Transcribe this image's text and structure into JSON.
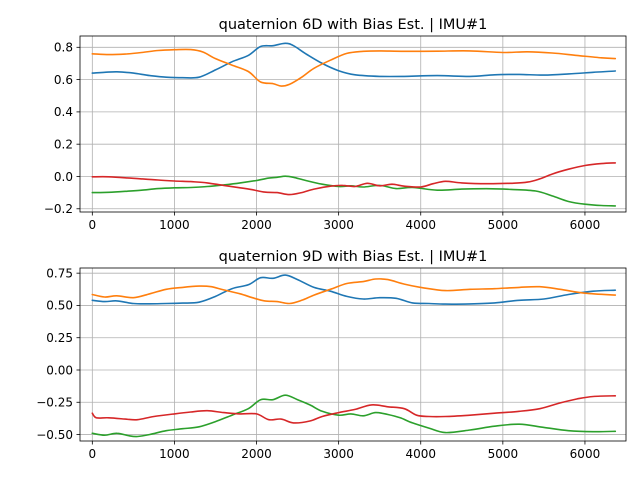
{
  "chart_data": [
    {
      "type": "line",
      "title": "quaternion 6D with Bias Est. | IMU#1",
      "xlabel": "",
      "ylabel": "",
      "xlim": [
        -150,
        6500
      ],
      "ylim": [
        -0.22,
        0.87
      ],
      "x_ticks": [
        0,
        1000,
        2000,
        3000,
        4000,
        5000,
        6000
      ],
      "x_tick_labels": [
        "0",
        "1000",
        "2000",
        "3000",
        "4000",
        "5000",
        "6000"
      ],
      "y_ticks": [
        -0.2,
        0.0,
        0.2,
        0.4,
        0.6,
        0.8
      ],
      "y_tick_labels": [
        "−0.2",
        "0.0",
        "0.2",
        "0.4",
        "0.6",
        "0.8"
      ],
      "grid": true,
      "series": [
        {
          "color": "#1f77b4",
          "x": [
            0,
            150,
            300,
            500,
            700,
            900,
            1100,
            1300,
            1500,
            1700,
            1900,
            2050,
            2200,
            2350,
            2450,
            2600,
            2800,
            3000,
            3200,
            3500,
            3800,
            4200,
            4600,
            4900,
            5200,
            5500,
            5800,
            6100,
            6370
          ],
          "y": [
            0.64,
            0.645,
            0.648,
            0.64,
            0.625,
            0.615,
            0.612,
            0.615,
            0.66,
            0.71,
            0.75,
            0.805,
            0.81,
            0.825,
            0.81,
            0.76,
            0.7,
            0.655,
            0.63,
            0.62,
            0.62,
            0.625,
            0.62,
            0.63,
            0.632,
            0.628,
            0.635,
            0.645,
            0.653
          ]
        },
        {
          "color": "#ff7f0e",
          "x": [
            0,
            200,
            400,
            600,
            800,
            1000,
            1200,
            1350,
            1500,
            1700,
            1900,
            2050,
            2200,
            2300,
            2400,
            2550,
            2700,
            2900,
            3100,
            3300,
            3500,
            3800,
            4200,
            4600,
            5000,
            5300,
            5600,
            5900,
            6200,
            6370
          ],
          "y": [
            0.76,
            0.755,
            0.758,
            0.768,
            0.78,
            0.785,
            0.786,
            0.77,
            0.73,
            0.69,
            0.65,
            0.585,
            0.575,
            0.56,
            0.57,
            0.615,
            0.67,
            0.72,
            0.762,
            0.775,
            0.778,
            0.775,
            0.776,
            0.778,
            0.768,
            0.772,
            0.765,
            0.75,
            0.735,
            0.73
          ]
        },
        {
          "color": "#2ca02c",
          "x": [
            0,
            200,
            400,
            600,
            800,
            1000,
            1200,
            1400,
            1600,
            1800,
            2000,
            2150,
            2250,
            2350,
            2450,
            2600,
            2800,
            3000,
            3150,
            3300,
            3500,
            3700,
            3900,
            4200,
            4500,
            4800,
            5100,
            5400,
            5600,
            5800,
            6000,
            6200,
            6370
          ],
          "y": [
            -0.1,
            -0.098,
            -0.092,
            -0.085,
            -0.075,
            -0.07,
            -0.068,
            -0.062,
            -0.052,
            -0.04,
            -0.025,
            -0.01,
            -0.005,
            0.002,
            -0.005,
            -0.025,
            -0.048,
            -0.062,
            -0.058,
            -0.065,
            -0.055,
            -0.075,
            -0.068,
            -0.085,
            -0.078,
            -0.076,
            -0.08,
            -0.09,
            -0.12,
            -0.155,
            -0.172,
            -0.18,
            -0.182
          ]
        },
        {
          "color": "#d62728",
          "x": [
            0,
            200,
            400,
            600,
            800,
            1000,
            1200,
            1400,
            1600,
            1800,
            1950,
            2100,
            2250,
            2400,
            2550,
            2700,
            2900,
            3050,
            3200,
            3350,
            3500,
            3650,
            3800,
            4000,
            4150,
            4300,
            4500,
            4800,
            5100,
            5300,
            5450,
            5600,
            5800,
            6000,
            6200,
            6370
          ],
          "y": [
            -0.002,
            -0.002,
            -0.008,
            -0.015,
            -0.022,
            -0.028,
            -0.032,
            -0.04,
            -0.055,
            -0.07,
            -0.082,
            -0.097,
            -0.1,
            -0.112,
            -0.1,
            -0.078,
            -0.06,
            -0.055,
            -0.062,
            -0.042,
            -0.058,
            -0.048,
            -0.06,
            -0.065,
            -0.045,
            -0.03,
            -0.04,
            -0.045,
            -0.042,
            -0.035,
            -0.015,
            0.015,
            0.045,
            0.068,
            0.08,
            0.084
          ]
        }
      ]
    },
    {
      "type": "line",
      "title": "quaternion 9D with Bias Est.  | IMU#1",
      "xlabel": "",
      "ylabel": "",
      "xlim": [
        -150,
        6500
      ],
      "ylim": [
        -0.55,
        0.79
      ],
      "x_ticks": [
        0,
        1000,
        2000,
        3000,
        4000,
        5000,
        6000
      ],
      "x_tick_labels": [
        "0",
        "1000",
        "2000",
        "3000",
        "4000",
        "5000",
        "6000"
      ],
      "y_ticks": [
        -0.5,
        -0.25,
        0.0,
        0.25,
        0.5,
        0.75
      ],
      "y_tick_labels": [
        "−0.50",
        "−0.25",
        "0.00",
        "0.25",
        "0.50",
        "0.75"
      ],
      "grid": true,
      "series": [
        {
          "color": "#1f77b4",
          "x": [
            0,
            150,
            300,
            500,
            700,
            900,
            1100,
            1300,
            1500,
            1700,
            1900,
            2050,
            2200,
            2350,
            2500,
            2700,
            2900,
            3100,
            3300,
            3500,
            3700,
            3900,
            4100,
            4300,
            4600,
            4900,
            5200,
            5500,
            5800,
            6100,
            6370
          ],
          "y": [
            0.54,
            0.53,
            0.535,
            0.515,
            0.513,
            0.515,
            0.518,
            0.525,
            0.57,
            0.63,
            0.66,
            0.715,
            0.71,
            0.735,
            0.7,
            0.64,
            0.61,
            0.57,
            0.55,
            0.56,
            0.555,
            0.52,
            0.515,
            0.51,
            0.512,
            0.52,
            0.54,
            0.55,
            0.585,
            0.61,
            0.618
          ]
        },
        {
          "color": "#ff7f0e",
          "x": [
            0,
            150,
            300,
            500,
            700,
            900,
            1100,
            1300,
            1450,
            1600,
            1800,
            1950,
            2100,
            2250,
            2400,
            2550,
            2700,
            2900,
            3100,
            3300,
            3450,
            3600,
            3800,
            4000,
            4300,
            4600,
            4900,
            5200,
            5450,
            5700,
            6000,
            6370
          ],
          "y": [
            0.585,
            0.565,
            0.575,
            0.56,
            0.59,
            0.625,
            0.64,
            0.65,
            0.645,
            0.62,
            0.59,
            0.56,
            0.535,
            0.53,
            0.515,
            0.54,
            0.58,
            0.625,
            0.67,
            0.685,
            0.705,
            0.7,
            0.665,
            0.64,
            0.615,
            0.625,
            0.63,
            0.64,
            0.645,
            0.625,
            0.595,
            0.58
          ]
        },
        {
          "color": "#2ca02c",
          "x": [
            0,
            150,
            300,
            450,
            550,
            700,
            900,
            1100,
            1300,
            1500,
            1700,
            1900,
            2050,
            2200,
            2350,
            2500,
            2650,
            2800,
            3000,
            3150,
            3300,
            3450,
            3600,
            3750,
            3900,
            4100,
            4300,
            4600,
            4900,
            5200,
            5500,
            5800,
            6100,
            6370
          ],
          "y": [
            -0.49,
            -0.505,
            -0.49,
            -0.51,
            -0.515,
            -0.5,
            -0.47,
            -0.455,
            -0.44,
            -0.4,
            -0.35,
            -0.3,
            -0.23,
            -0.23,
            -0.195,
            -0.23,
            -0.27,
            -0.32,
            -0.35,
            -0.34,
            -0.355,
            -0.33,
            -0.345,
            -0.37,
            -0.41,
            -0.45,
            -0.485,
            -0.465,
            -0.435,
            -0.42,
            -0.445,
            -0.47,
            -0.478,
            -0.475
          ]
        },
        {
          "color": "#d62728",
          "x": [
            0,
            50,
            200,
            400,
            550,
            750,
            1000,
            1200,
            1400,
            1600,
            1800,
            2000,
            2150,
            2300,
            2450,
            2650,
            2800,
            3000,
            3200,
            3400,
            3600,
            3800,
            3950,
            4100,
            4300,
            4600,
            4900,
            5200,
            5450,
            5700,
            5900,
            6100,
            6370
          ],
          "y": [
            -0.335,
            -0.37,
            -0.37,
            -0.38,
            -0.385,
            -0.36,
            -0.34,
            -0.325,
            -0.315,
            -0.33,
            -0.34,
            -0.34,
            -0.385,
            -0.38,
            -0.41,
            -0.395,
            -0.36,
            -0.33,
            -0.305,
            -0.27,
            -0.285,
            -0.3,
            -0.35,
            -0.36,
            -0.36,
            -0.35,
            -0.335,
            -0.32,
            -0.3,
            -0.255,
            -0.225,
            -0.205,
            -0.2
          ]
        }
      ]
    }
  ]
}
